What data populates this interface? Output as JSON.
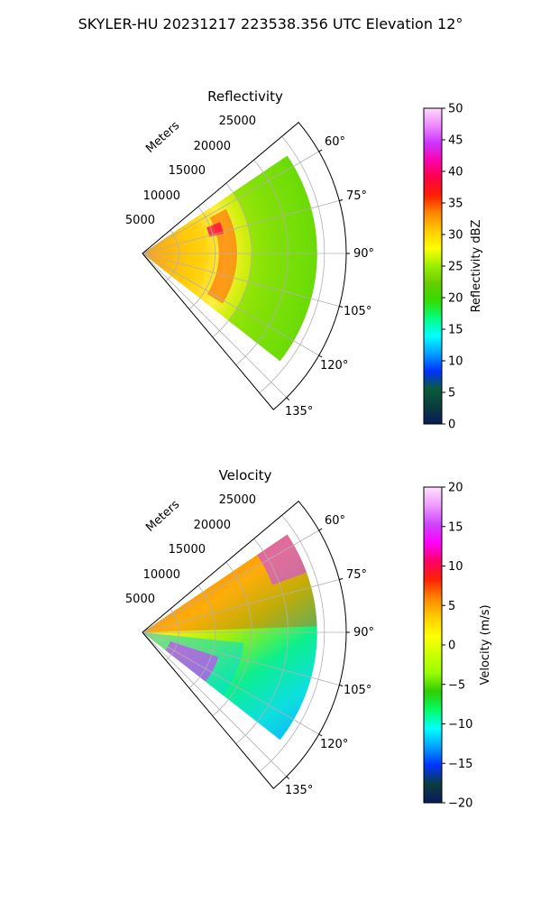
{
  "figure_title": "SKYLER-HU  20231217  223538.356 UTC Elevation 12°",
  "chart_data": [
    {
      "type": "polar-sector",
      "title": "Reflectivity",
      "radial_label": "Meters",
      "radial_ticks": [
        "5000",
        "10000",
        "15000",
        "20000",
        "25000"
      ],
      "radial_tick_values": [
        5000,
        10000,
        15000,
        20000,
        25000
      ],
      "rmax": 28000,
      "angle_ticks": [
        "60°",
        "75°",
        "90°",
        "105°",
        "120°",
        "135°"
      ],
      "angle_tick_values": [
        60,
        75,
        90,
        105,
        120,
        135
      ],
      "theta_range_deg": [
        50,
        140
      ],
      "colorbar": {
        "label": "Reflectivity dBZ",
        "range": [
          0,
          50
        ],
        "ticks": [
          "0",
          "5",
          "10",
          "15",
          "20",
          "25",
          "30",
          "35",
          "40",
          "45",
          "50"
        ],
        "tick_values": [
          0,
          5,
          10,
          15,
          20,
          25,
          30,
          35,
          40,
          45,
          50
        ]
      },
      "data_extent": {
        "theta_deg": [
          56,
          128
        ],
        "max_range_m": 24000
      }
    },
    {
      "type": "polar-sector",
      "title": "Velocity",
      "radial_label": "Meters",
      "radial_ticks": [
        "5000",
        "10000",
        "15000",
        "20000",
        "25000"
      ],
      "radial_tick_values": [
        5000,
        10000,
        15000,
        20000,
        25000
      ],
      "rmax": 28000,
      "angle_ticks": [
        "60°",
        "75°",
        "90°",
        "105°",
        "120°",
        "135°"
      ],
      "angle_tick_values": [
        60,
        75,
        90,
        105,
        120,
        135
      ],
      "theta_range_deg": [
        50,
        140
      ],
      "colorbar": {
        "label": "Velocity (m/s)",
        "range": [
          -20,
          20
        ],
        "ticks": [
          "−20",
          "−15",
          "−10",
          "−5",
          "0",
          "5",
          "10",
          "15",
          "20"
        ],
        "tick_values": [
          -20,
          -15,
          -10,
          -5,
          0,
          5,
          10,
          15,
          20
        ]
      },
      "data_extent": {
        "theta_deg": [
          56,
          128
        ],
        "max_range_m": 24000
      }
    }
  ],
  "colors": {
    "reflectivity_stops": [
      "#0a1a5c",
      "#0a3d3d",
      "#0a5a3a",
      "#0032ff",
      "#00a0ff",
      "#00ffff",
      "#00ff88",
      "#33dd00",
      "#66cc00",
      "#99ee00",
      "#ffff00",
      "#ffcc00",
      "#ff8800",
      "#ff2200",
      "#ff0044",
      "#ff00aa",
      "#cc33ff",
      "#ee88ff",
      "#ffd8ff"
    ],
    "velocity_stops": [
      "#0a1a5c",
      "#0a3d3d",
      "#0032ff",
      "#00a0ff",
      "#00ffff",
      "#00ff66",
      "#33cc00",
      "#99ff00",
      "#ccff00",
      "#ffff00",
      "#ffcc00",
      "#ff8800",
      "#ff2200",
      "#ff0066",
      "#ff00ff",
      "#cc44ff",
      "#ee99ff",
      "#ffe0ff"
    ],
    "frame": "#000000",
    "grid": "#b0b0b0"
  }
}
